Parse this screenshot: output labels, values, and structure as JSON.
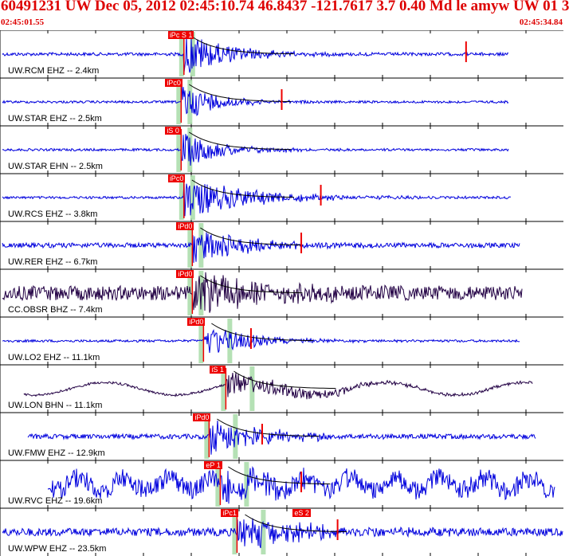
{
  "header": {
    "title": "60491231 UW Dec 05, 2012 02:45:10.74   46.8437 -121.7617  3.7 0.40 Md le amyw UW 01   3",
    "time_start": "02:45:01.55",
    "time_end": "02:45:34.84"
  },
  "colors": {
    "header_text": "#dd0000",
    "trace_blue": "#0000dd",
    "trace_dark": "#220044",
    "pick": "#ee0000",
    "window": "#a8dca8",
    "coda": "#000000"
  },
  "traces": [
    {
      "label": "UW.RCM EHZ -- 2.4km",
      "color": "blue",
      "onset": 0.325,
      "amp": 28,
      "noise": 2,
      "decay": 0.08,
      "pick_labels": [
        "iPc S 1"
      ],
      "end_marker": 0.83,
      "long_period": false
    },
    {
      "label": "UW.STAR EHZ -- 2.5km",
      "color": "blue",
      "onset": 0.32,
      "amp": 26,
      "noise": 1.5,
      "decay": 0.06,
      "pick_labels": [
        "iPc0"
      ],
      "end_marker": 0.5,
      "long_period": false
    },
    {
      "label": "UW.STAR EHN -- 2.5km",
      "color": "blue",
      "onset": 0.32,
      "amp": 24,
      "noise": 1.5,
      "decay": 0.07,
      "pick_labels": [
        "iS 0"
      ],
      "end_marker": null,
      "long_period": false
    },
    {
      "label": "UW.RCS EHZ -- 3.8km",
      "color": "blue",
      "onset": 0.325,
      "amp": 26,
      "noise": 1.5,
      "decay": 0.12,
      "pick_labels": [
        "iPc0"
      ],
      "end_marker": 0.57,
      "long_period": false
    },
    {
      "label": "UW.RER EHZ -- 6.7km",
      "color": "blue",
      "onset": 0.34,
      "amp": 26,
      "noise": 3,
      "decay": 0.09,
      "pick_labels": [
        "iPd0"
      ],
      "end_marker": 0.535,
      "long_period": false
    },
    {
      "label": "CC.OBSR BHZ -- 7.4km",
      "color": "dark",
      "onset": 0.34,
      "amp": 28,
      "noise": 9,
      "decay": 0.12,
      "pick_labels": [
        "iPd0"
      ],
      "end_marker": null,
      "long_period": false
    },
    {
      "label": "UW.LO2 EHZ -- 11.1km",
      "color": "blue",
      "onset": 0.36,
      "amp": 22,
      "noise": 1.5,
      "decay": 0.08,
      "pick_labels": [
        "iPd0"
      ],
      "end_marker": 0.445,
      "long_period": false
    },
    {
      "label": "UW.LON BHN -- 11.1km",
      "color": "dark",
      "onset": 0.4,
      "amp": 16,
      "noise": 1.5,
      "decay": 0.15,
      "pick_labels": [
        "iS 1"
      ],
      "end_marker": null,
      "long_period": true
    },
    {
      "label": "UW.FMW EHZ -- 12.9km",
      "color": "blue",
      "onset": 0.37,
      "amp": 25,
      "noise": 3,
      "decay": 0.1,
      "pick_labels": [
        "iPd0"
      ],
      "end_marker": 0.465,
      "long_period": false
    },
    {
      "label": "UW.RVC EHZ -- 19.6km",
      "color": "blue",
      "onset": 0.39,
      "amp": 22,
      "noise": 12,
      "decay": 0.1,
      "pick_labels": [
        "eP 1"
      ],
      "end_marker": 0.535,
      "long_period": false
    },
    {
      "label": "UW.WPW EHZ -- 23.5km",
      "color": "blue",
      "onset": 0.42,
      "amp": 24,
      "noise": 5,
      "decay": 0.12,
      "pick_labels": [
        "iPc1",
        "eS 2"
      ],
      "end_marker": 0.6,
      "long_period": false
    }
  ]
}
